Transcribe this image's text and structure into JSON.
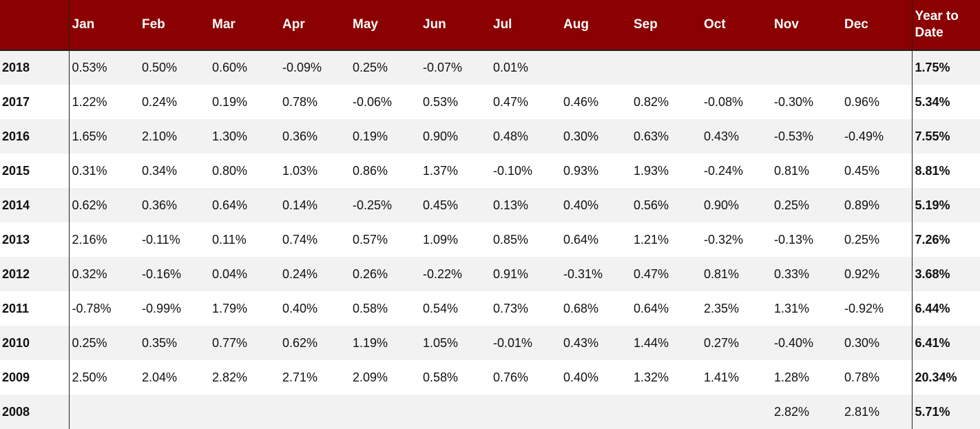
{
  "table": {
    "columns": [
      "",
      "Jan",
      "Feb",
      "Mar",
      "Apr",
      "May",
      "Jun",
      "Jul",
      "Aug",
      "Sep",
      "Oct",
      "Nov",
      "Dec",
      "Year to Date"
    ],
    "rows": [
      {
        "year": "2018",
        "months": [
          "0.53%",
          "0.50%",
          "0.60%",
          "-0.09%",
          "0.25%",
          "-0.07%",
          "0.01%",
          "",
          "",
          "",
          "",
          ""
        ],
        "ytd": "1.75%"
      },
      {
        "year": "2017",
        "months": [
          "1.22%",
          "0.24%",
          "0.19%",
          "0.78%",
          "-0.06%",
          "0.53%",
          "0.47%",
          "0.46%",
          "0.82%",
          "-0.08%",
          "-0.30%",
          "0.96%"
        ],
        "ytd": "5.34%"
      },
      {
        "year": "2016",
        "months": [
          "1.65%",
          "2.10%",
          "1.30%",
          "0.36%",
          "0.19%",
          "0.90%",
          "0.48%",
          "0.30%",
          "0.63%",
          "0.43%",
          "-0.53%",
          "-0.49%"
        ],
        "ytd": "7.55%"
      },
      {
        "year": "2015",
        "months": [
          "0.31%",
          "0.34%",
          "0.80%",
          "1.03%",
          "0.86%",
          "1.37%",
          "-0.10%",
          "0.93%",
          "1.93%",
          "-0.24%",
          "0.81%",
          "0.45%"
        ],
        "ytd": "8.81%"
      },
      {
        "year": "2014",
        "months": [
          "0.62%",
          "0.36%",
          "0.64%",
          "0.14%",
          "-0.25%",
          "0.45%",
          "0.13%",
          "0.40%",
          "0.56%",
          "0.90%",
          "0.25%",
          "0.89%"
        ],
        "ytd": "5.19%"
      },
      {
        "year": "2013",
        "months": [
          "2.16%",
          "-0.11%",
          "0.11%",
          "0.74%",
          "0.57%",
          "1.09%",
          "0.85%",
          "0.64%",
          "1.21%",
          "-0.32%",
          "-0.13%",
          "0.25%"
        ],
        "ytd": "7.26%"
      },
      {
        "year": "2012",
        "months": [
          "0.32%",
          "-0.16%",
          "0.04%",
          "0.24%",
          "0.26%",
          "-0.22%",
          "0.91%",
          "-0.31%",
          "0.47%",
          "0.81%",
          "0.33%",
          "0.92%"
        ],
        "ytd": "3.68%"
      },
      {
        "year": "2011",
        "months": [
          "-0.78%",
          "-0.99%",
          "1.79%",
          "0.40%",
          "0.58%",
          "0.54%",
          "0.73%",
          "0.68%",
          "0.64%",
          "2.35%",
          "1.31%",
          "-0.92%"
        ],
        "ytd": "6.44%"
      },
      {
        "year": "2010",
        "months": [
          "0.25%",
          "0.35%",
          "0.77%",
          "0.62%",
          "1.19%",
          "1.05%",
          "-0.01%",
          "0.43%",
          "1.44%",
          "0.27%",
          "-0.40%",
          "0.30%"
        ],
        "ytd": "6.41%"
      },
      {
        "year": "2009",
        "months": [
          "2.50%",
          "2.04%",
          "2.82%",
          "2.71%",
          "2.09%",
          "0.58%",
          "0.76%",
          "0.40%",
          "1.32%",
          "1.41%",
          "1.28%",
          "0.78%"
        ],
        "ytd": "20.34%"
      },
      {
        "year": "2008",
        "months": [
          "",
          "",
          "",
          "",
          "",
          "",
          "",
          "",
          "",
          "",
          "2.82%",
          "2.81%"
        ],
        "ytd": "5.71%"
      }
    ]
  },
  "colors": {
    "header_background": "#8b0000",
    "header_text": "#ffffff",
    "row_stripe": "#f2f2f2",
    "row_plain": "#ffffff"
  }
}
